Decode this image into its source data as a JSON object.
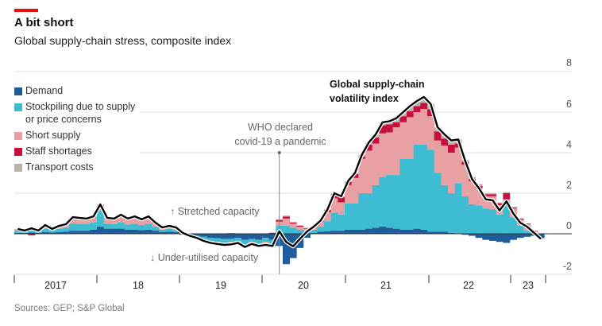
{
  "header": {
    "title": "A bit short",
    "subtitle": "Global supply-chain stress, composite index"
  },
  "sources": "Sources: GEP; S&P Global",
  "colors": {
    "demand": "#1f5c99",
    "stockpiling": "#3ebcd2",
    "short_supply": "#e8a0a2",
    "staff_shortages": "#c8103e",
    "transport_costs": "#b8b4a8",
    "line": "#000000",
    "accent": "#e3120b"
  },
  "chart_data": {
    "type": "bar",
    "stacked": true,
    "title": "A bit short",
    "subtitle": "Global supply-chain stress, composite index",
    "xlabel": "",
    "ylabel": "",
    "ylim": [
      -2,
      8
    ],
    "y_ticks": [
      "8",
      "6",
      "4",
      "2",
      "0",
      "-2"
    ],
    "y_tick_values": [
      8,
      6,
      4,
      2,
      0,
      -2
    ],
    "x_tick_labels": [
      "2017",
      "18",
      "19",
      "20",
      "21",
      "22",
      "23"
    ],
    "start": "2017-01",
    "frequency": "monthly",
    "legend": {
      "placement": "top-left",
      "entries": [
        "Demand",
        "Stockpiling due to supply",
        "or price concerns",
        "Short supply",
        "Staff shortages",
        "Transport costs"
      ]
    },
    "series": [
      {
        "name": "Demand",
        "key": "demand",
        "values": [
          0.05,
          0.04,
          0.06,
          0.04,
          0.08,
          0.06,
          0.08,
          0.1,
          0.15,
          0.15,
          0.15,
          0.2,
          0.35,
          0.25,
          0.25,
          0.25,
          0.2,
          0.2,
          0.18,
          0.2,
          0.15,
          0.08,
          0.1,
          0.08,
          0,
          -0.05,
          -0.1,
          -0.15,
          -0.2,
          -0.22,
          -0.25,
          -0.25,
          -0.2,
          -0.3,
          -0.25,
          -0.3,
          -0.2,
          -0.3,
          -0.6,
          -1.5,
          -1.2,
          -0.7,
          -0.2,
          0.05,
          0.1,
          0.12,
          0.15,
          0.15,
          0.2,
          0.2,
          0.2,
          0.25,
          0.3,
          0.35,
          0.3,
          0.25,
          0.2,
          0.2,
          0.25,
          0.2,
          0.1,
          0.1,
          0.1,
          0.05,
          0,
          -0.05,
          -0.1,
          -0.2,
          -0.3,
          -0.35,
          -0.4,
          -0.45,
          -0.3,
          -0.2,
          -0.15,
          -0.1,
          -0.2
        ]
      },
      {
        "name": "Stockpiling due to supply or price concerns",
        "key": "stockpiling",
        "values": [
          0.1,
          0.06,
          0.1,
          0.06,
          0.18,
          0.1,
          0.16,
          0.2,
          0.35,
          0.33,
          0.32,
          0.35,
          0.8,
          0.25,
          0.22,
          0.3,
          0.25,
          0.3,
          0.25,
          0.3,
          0.2,
          0.12,
          0.15,
          0.1,
          0.04,
          -0.03,
          -0.06,
          -0.12,
          -0.15,
          -0.18,
          -0.18,
          -0.15,
          -0.15,
          -0.25,
          -0.15,
          -0.2,
          -0.2,
          -0.3,
          0.4,
          0.4,
          0.3,
          0.2,
          0.15,
          0.15,
          0.25,
          0.5,
          0.9,
          0.8,
          1.3,
          1.3,
          1.8,
          1.75,
          2.1,
          2.45,
          2.6,
          2.65,
          3.5,
          3.5,
          4.15,
          4.2,
          4.05,
          2.9,
          2.3,
          1.95,
          2.5,
          1.85,
          1.45,
          1.4,
          1.25,
          1.2,
          0.95,
          1.6,
          0.8,
          0.4,
          0.15,
          0.05,
          0
        ]
      },
      {
        "name": "Short supply",
        "key": "short_supply",
        "values": [
          0.07,
          0.05,
          0.09,
          0.05,
          0.14,
          0.07,
          0.12,
          0.14,
          0.27,
          0.25,
          0.24,
          0.26,
          0.25,
          0.25,
          0.24,
          0.35,
          0.26,
          0.32,
          0.24,
          0.32,
          0.17,
          0.1,
          0.12,
          0.11,
          0.02,
          -0.02,
          -0.04,
          -0.08,
          -0.1,
          -0.1,
          -0.12,
          -0.12,
          -0.1,
          -0.1,
          -0.1,
          -0.1,
          -0.1,
          -0.05,
          0.2,
          0.35,
          0.2,
          0.15,
          0.1,
          0.12,
          0.25,
          0.45,
          0.7,
          0.6,
          0.9,
          1.25,
          1.7,
          2.1,
          2.05,
          2.15,
          2.1,
          2.35,
          1.8,
          2.05,
          1.6,
          1.75,
          1.65,
          1.6,
          1.95,
          2.0,
          1.75,
          1.55,
          1.15,
          0.85,
          0.6,
          0.65,
          0.45,
          0.1,
          0.45,
          0.3,
          0.32,
          0.08,
          -0.05
        ]
      },
      {
        "name": "Staff shortages",
        "key": "staff_shortages",
        "values": [
          0,
          0,
          -0.08,
          0,
          0,
          0,
          0,
          0,
          0.02,
          0.02,
          0.02,
          0.02,
          0.02,
          0.02,
          0.02,
          0.02,
          0.02,
          0.02,
          0.02,
          0.02,
          0.01,
          0,
          0,
          0,
          -0.05,
          0,
          0,
          0,
          0.02,
          0,
          0,
          0.03,
          0,
          0,
          0.02,
          0,
          -0.05,
          0.05,
          0.08,
          0.1,
          0.05,
          0.05,
          0.03,
          0.02,
          0.03,
          0.1,
          0.2,
          0.25,
          0.15,
          0.2,
          0.1,
          0.3,
          0.3,
          0.4,
          0.4,
          0.25,
          0.3,
          0.3,
          0.3,
          0.3,
          0.35,
          0.45,
          0.35,
          0.4,
          0.2,
          0.15,
          0.1,
          0.1,
          0.1,
          0.1,
          0.1,
          0.3,
          0.05,
          0.05,
          0.03,
          0.02,
          0
        ]
      },
      {
        "name": "Transport costs",
        "key": "transport_costs",
        "values": [
          0.02,
          0.01,
          0.02,
          0.01,
          0.03,
          0.01,
          0.03,
          0.03,
          0.03,
          0.03,
          0.02,
          0.03,
          0.03,
          0.01,
          0.02,
          0.02,
          0.02,
          0.02,
          0.02,
          0.02,
          0.02,
          0.01,
          0.02,
          0.02,
          0,
          0,
          0,
          0,
          0,
          0,
          0,
          0,
          0,
          0,
          0,
          0,
          0,
          0,
          0.04,
          0.05,
          0.03,
          0.02,
          0.02,
          0.01,
          0.02,
          0.03,
          0.05,
          0.05,
          0.05,
          0.05,
          0.1,
          0.1,
          0.15,
          0.15,
          0.15,
          0.2,
          0.2,
          0.25,
          0.25,
          0.3,
          0.25,
          0.2,
          0.2,
          0.2,
          0.2,
          0.1,
          0.1,
          0.1,
          0.05,
          0.05,
          0.05,
          0.05,
          0,
          0,
          0,
          0,
          0
        ]
      }
    ],
    "line": {
      "name": "Global supply-chain volatility index",
      "label_line1": "Global supply-chain",
      "label_line2": "volatility index",
      "values": [
        0.24,
        0.16,
        0.27,
        0.16,
        0.43,
        0.24,
        0.39,
        0.47,
        0.82,
        0.78,
        0.75,
        0.86,
        1.45,
        0.78,
        0.75,
        0.94,
        0.75,
        0.86,
        0.71,
        0.86,
        0.55,
        0.31,
        0.39,
        0.31,
        0.04,
        -0.1,
        -0.2,
        -0.35,
        -0.45,
        -0.5,
        -0.55,
        -0.52,
        -0.45,
        -0.65,
        -0.5,
        -0.6,
        -0.55,
        -0.6,
        0.12,
        -0.4,
        -0.62,
        -0.25,
        0.1,
        0.35,
        0.65,
        1.2,
        2.0,
        1.85,
        2.6,
        3.0,
        3.9,
        4.5,
        4.9,
        5.5,
        5.55,
        5.7,
        6.0,
        6.3,
        6.55,
        6.75,
        6.4,
        5.25,
        4.9,
        4.6,
        4.65,
        3.6,
        2.7,
        2.25,
        1.7,
        1.65,
        1.15,
        1.6,
        1.0,
        0.55,
        0.35,
        0.05,
        -0.25
      ]
    },
    "annotations": {
      "who_line1": "WHO declared",
      "who_line2": "covid-19 a pandemic",
      "who_date": "2020-03",
      "stretched": "↑ Stretched capacity",
      "underutilised": "↓ Under-utilised capacity"
    }
  }
}
